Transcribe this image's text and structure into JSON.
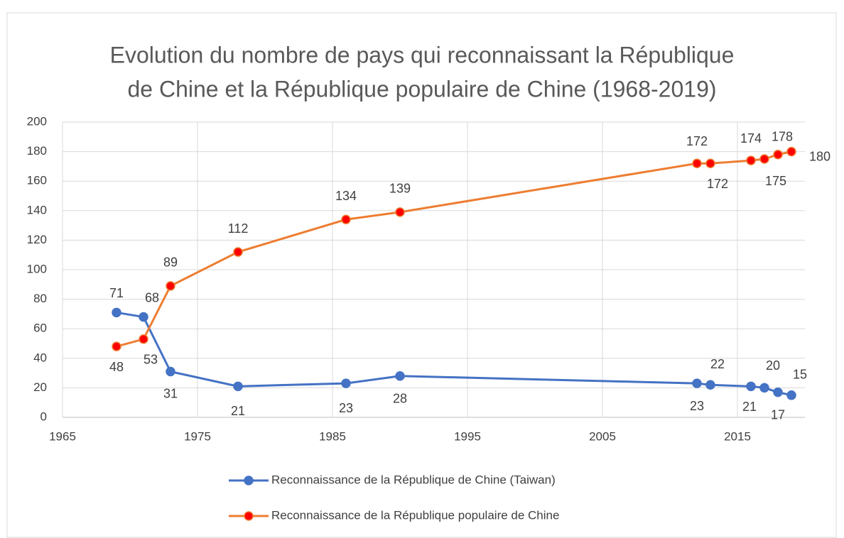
{
  "chart_data": {
    "type": "line",
    "title": [
      "Evolution du nombre de pays qui reconnaissant la République",
      "de Chine et la République populaire de Chine (1968-2019)"
    ],
    "x": [
      1969,
      1971,
      1973,
      1978,
      1986,
      1990,
      2012,
      2013,
      2016,
      2017,
      2018,
      2019
    ],
    "series": [
      {
        "name": "Reconnaissance de la République de Chine (Taiwan)",
        "color": "#4472c4",
        "marker_color": "#4472c4",
        "values": [
          71,
          68,
          31,
          21,
          23,
          28,
          23,
          22,
          21,
          20,
          17,
          15
        ]
      },
      {
        "name": "Reconnaissance de la République populaire de Chine",
        "color": "#ed7d31",
        "marker_color": "#ff0000",
        "values": [
          48,
          53,
          89,
          112,
          134,
          139,
          172,
          172,
          174,
          175,
          178,
          180
        ]
      }
    ],
    "xlim": [
      1965,
      2020
    ],
    "xticks": [
      1965,
      1975,
      1985,
      1995,
      2005,
      2015
    ],
    "ylim": [
      0,
      200
    ],
    "yticks": [
      0,
      20,
      40,
      60,
      80,
      100,
      120,
      140,
      160,
      180,
      200
    ],
    "grid": true,
    "legend": "bottom"
  }
}
